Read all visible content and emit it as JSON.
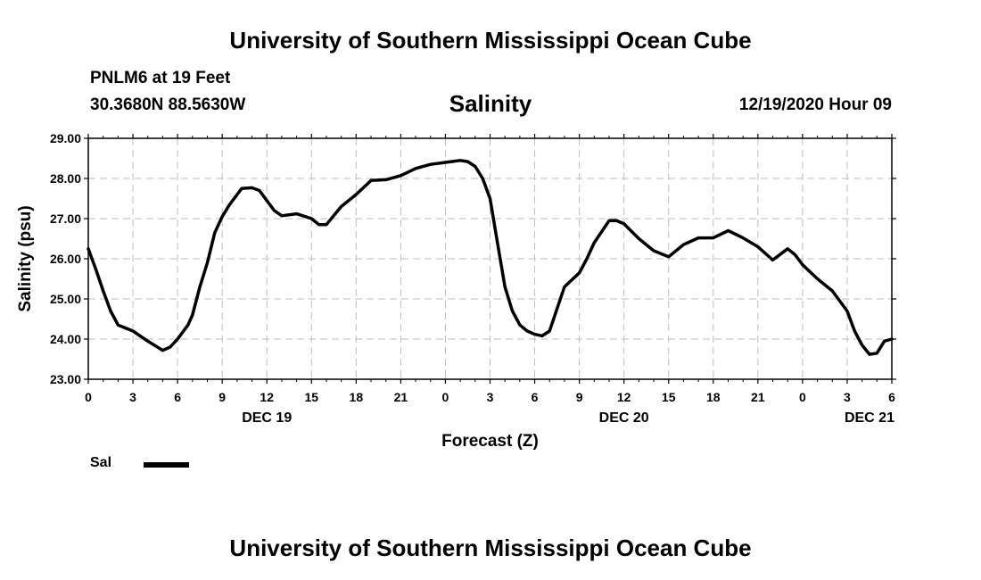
{
  "header": {
    "title": "University of Southern Mississippi Ocean Cube",
    "station": "PNLM6 at 19 Feet",
    "coordinates": "30.3680N 88.5630W",
    "chart_title": "Salinity",
    "datetime": "12/19/2020 Hour 09"
  },
  "footer": {
    "title": "University of Southern Mississippi Ocean Cube"
  },
  "legend": {
    "label": "Sal"
  },
  "chart_data": {
    "type": "line",
    "title": "Salinity",
    "xlabel": "Forecast (Z)",
    "ylabel": "Salinity (psu)",
    "units": "hours from 00Z DEC 19",
    "xlim": [
      0,
      54
    ],
    "ylim": [
      23.0,
      29.0
    ],
    "y_ticks": [
      23.0,
      24.0,
      25.0,
      26.0,
      27.0,
      28.0,
      29.0
    ],
    "y_tick_labels": [
      "23.00",
      "24.00",
      "25.00",
      "26.00",
      "27.00",
      "28.00",
      "29.00"
    ],
    "x_ticks": [
      0,
      3,
      6,
      9,
      12,
      15,
      18,
      21,
      24,
      27,
      30,
      33,
      36,
      39,
      42,
      45,
      48,
      51,
      54
    ],
    "x_tick_labels": [
      "0",
      "3",
      "6",
      "9",
      "12",
      "15",
      "18",
      "21",
      "0",
      "3",
      "6",
      "9",
      "12",
      "15",
      "18",
      "21",
      "0",
      "3",
      "6"
    ],
    "day_labels": [
      {
        "x": 12,
        "label": "DEC 19"
      },
      {
        "x": 36,
        "label": "DEC 20"
      },
      {
        "x": 52.5,
        "label": "DEC 21"
      }
    ],
    "grid": true,
    "series": [
      {
        "name": "Sal",
        "x": [
          0,
          0.5,
          1,
          1.5,
          2,
          3,
          4,
          5,
          5.5,
          6,
          6.7,
          7,
          7.5,
          8,
          8.5,
          9,
          9.5,
          10,
          10.3,
          11,
          11.5,
          12,
          12.5,
          13,
          14,
          15,
          15.5,
          16,
          17,
          18,
          19,
          20,
          21,
          22,
          23,
          24,
          25,
          25.5,
          26,
          26.5,
          27,
          27.5,
          28,
          28.5,
          29,
          29.5,
          30,
          30.5,
          31,
          32,
          33,
          33.5,
          34,
          35,
          35.5,
          36,
          37,
          38,
          39,
          40,
          41,
          42,
          43,
          44,
          45,
          46,
          47,
          47.5,
          48,
          49,
          50,
          51,
          51.5,
          52,
          52.5,
          53,
          53.5,
          54
        ],
        "values": [
          26.25,
          25.75,
          25.2,
          24.7,
          24.35,
          24.2,
          23.95,
          23.72,
          23.8,
          24.0,
          24.35,
          24.6,
          25.3,
          25.9,
          26.65,
          27.05,
          27.35,
          27.6,
          27.75,
          27.77,
          27.7,
          27.45,
          27.2,
          27.07,
          27.12,
          27.0,
          26.85,
          26.85,
          27.3,
          27.6,
          27.95,
          27.97,
          28.07,
          28.25,
          28.35,
          28.4,
          28.45,
          28.42,
          28.3,
          28.0,
          27.5,
          26.4,
          25.3,
          24.7,
          24.35,
          24.2,
          24.12,
          24.08,
          24.2,
          25.3,
          25.65,
          26.0,
          26.4,
          26.95,
          26.95,
          26.87,
          26.5,
          26.2,
          26.05,
          26.35,
          26.52,
          26.52,
          26.7,
          26.52,
          26.3,
          25.97,
          26.25,
          26.1,
          25.85,
          25.5,
          25.2,
          24.7,
          24.2,
          23.85,
          23.62,
          23.65,
          23.95,
          24.0
        ]
      }
    ]
  }
}
